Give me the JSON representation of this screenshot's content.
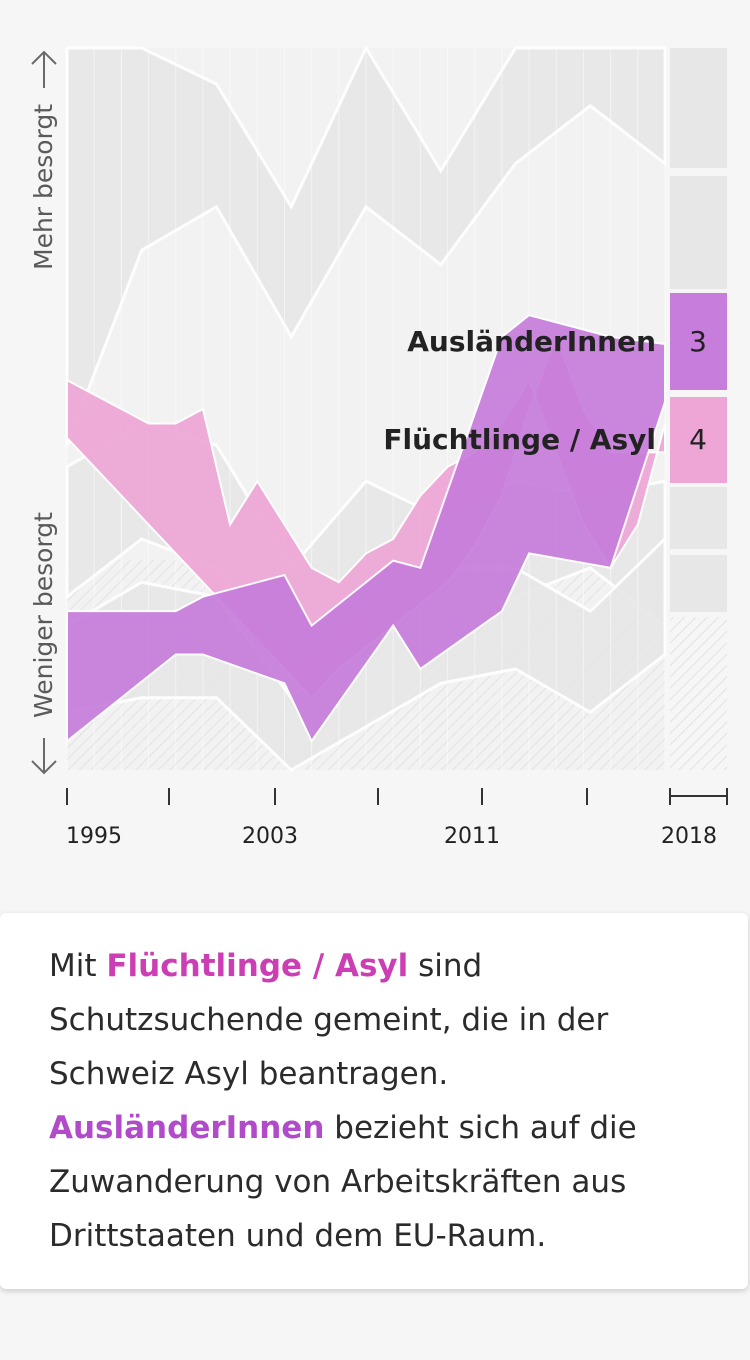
{
  "chart_data": {
    "type": "line",
    "title": "",
    "ylabel_top": "Mehr besorgt",
    "ylabel_bottom": "Weniger besorgt",
    "x_tick_labels": [
      "1995",
      "2003",
      "2011",
      "2018"
    ],
    "x": [
      1995,
      1996,
      1997,
      1998,
      1999,
      2000,
      2001,
      2002,
      2003,
      2004,
      2005,
      2006,
      2007,
      2008,
      2009,
      2010,
      2011,
      2012,
      2013,
      2014,
      2015,
      2016,
      2017
    ],
    "ranks": [
      1,
      2,
      3,
      4,
      5,
      6,
      7
    ],
    "y_direction": "up = mehr besorgt",
    "series": [
      {
        "name": "AusländerInnen",
        "color": "#c77ddb",
        "rank_2018": "3",
        "x": [
          1995,
          1999,
          2000,
          2003,
          2004,
          2007,
          2008,
          2011,
          2012,
          2015,
          2017
        ],
        "band_top": [
          0.78,
          0.78,
          0.76,
          0.73,
          0.8,
          0.71,
          0.72,
          0.4,
          0.37,
          0.4,
          0.41
        ],
        "band_bottom": [
          0.96,
          0.84,
          0.84,
          0.88,
          0.96,
          0.8,
          0.86,
          0.78,
          0.7,
          0.72,
          0.49
        ]
      },
      {
        "name": "Flüchtlinge / Asyl",
        "color": "#eea6d6",
        "rank_2018": "4",
        "x": [
          1995,
          1996,
          1997,
          1998,
          1999,
          2000,
          2001,
          2002,
          2003,
          2004,
          2005,
          2006,
          2007,
          2008,
          2009,
          2010,
          2011,
          2012,
          2013,
          2014,
          2015,
          2016,
          2017
        ],
        "band_top": [
          0.54,
          0.58,
          0.62,
          0.66,
          0.7,
          0.74,
          0.78,
          0.82,
          0.86,
          0.9,
          0.86,
          0.83,
          0.8,
          0.77,
          0.74,
          0.69,
          0.62,
          0.5,
          0.4,
          0.5,
          0.56,
          0.56,
          0.56
        ],
        "band_bottom": [
          0.46,
          0.48,
          0.5,
          0.52,
          0.52,
          0.5,
          0.66,
          0.6,
          0.66,
          0.72,
          0.74,
          0.7,
          0.68,
          0.62,
          0.58,
          0.56,
          0.52,
          0.46,
          0.56,
          0.66,
          0.72,
          0.66,
          0.52
        ]
      }
    ],
    "series_labels": [
      {
        "name": "AusländerInnen",
        "rank": "3"
      },
      {
        "name": "Flüchtlinge / Asyl",
        "rank": "4"
      }
    ],
    "legend": "inline-right",
    "grid": true
  },
  "note": {
    "intro": "Mit ",
    "term_refugees": "Flüchtlinge / Asyl",
    "text_refugees": " sind Schutzsuchende gemeint, die in der Schweiz Asyl beantragen.",
    "term_foreigners": "AusländerInnen",
    "text_foreigners": " bezieht sich auf die Zuwanderung von Arbeitskräften aus Drittstaaten und dem EU-Raum."
  },
  "colors": {
    "purple": "#c77ddb",
    "pink": "#eea6d6",
    "grey_band": "#e7e7e7",
    "term_pink": "#cc3fb4",
    "term_purple": "#b14bc9"
  }
}
